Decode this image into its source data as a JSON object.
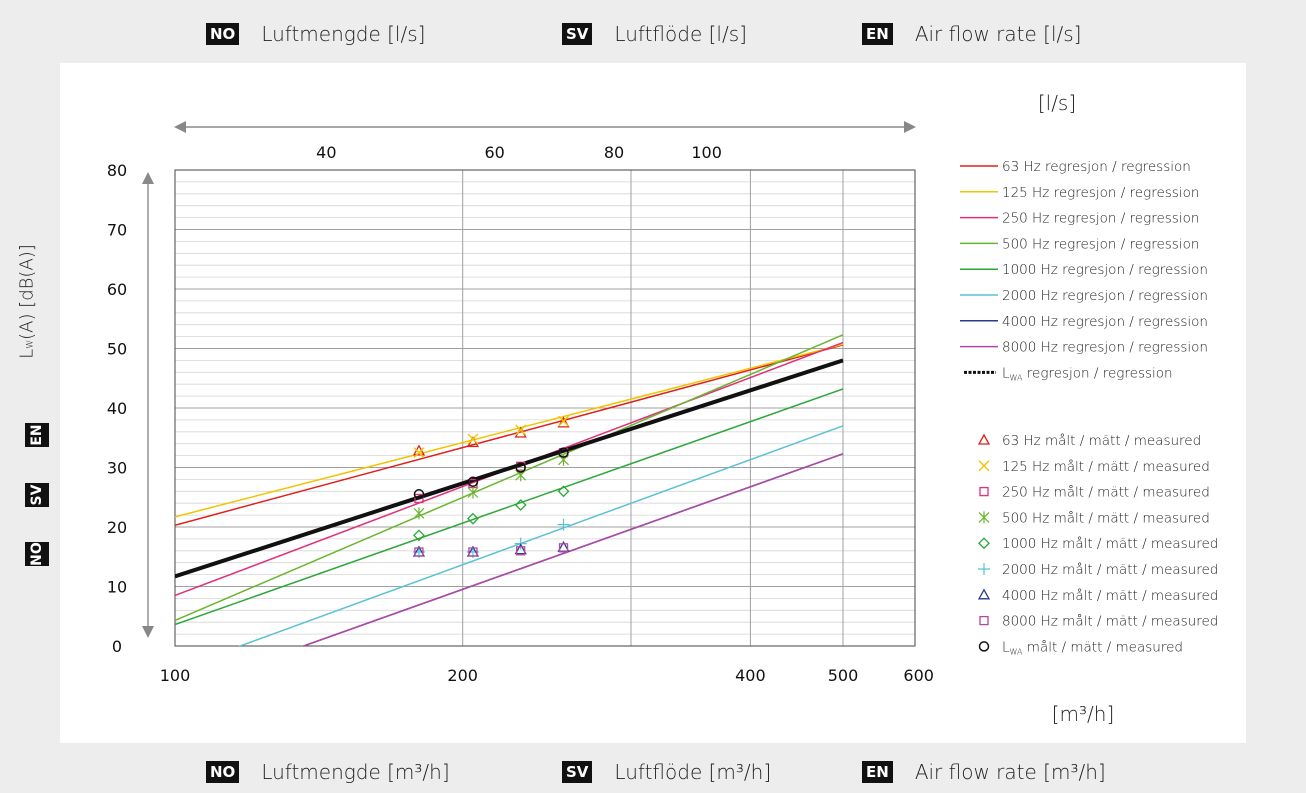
{
  "header": [
    {
      "code": "NO",
      "text": "Luftmengde [l/s]"
    },
    {
      "code": "SV",
      "text": "Luftflöde [l/s]"
    },
    {
      "code": "EN",
      "text": "Air flow rate [l/s]"
    }
  ],
  "footer": [
    {
      "code": "NO",
      "text": "Luftmengde [m³/h]"
    },
    {
      "code": "SV",
      "text": "Luftflöde [m³/h]"
    },
    {
      "code": "EN",
      "text": "Air flow rate [m³/h]"
    }
  ],
  "side_badges": [
    "EN",
    "SV",
    "NO"
  ],
  "chart_data": {
    "type": "scatter",
    "xscale": "log",
    "xlim": [
      100,
      500
    ],
    "ylim": [
      0,
      80
    ],
    "xticks": [
      100,
      200,
      400,
      500,
      600
    ],
    "yticks": [
      0,
      10,
      20,
      30,
      40,
      50,
      60,
      70,
      80
    ],
    "top_axis_ticks": [
      40,
      60,
      80,
      100
    ],
    "top_axis_unit": "[l/s]",
    "bottom_axis_unit": "[m³/h]",
    "ylabel_main": "L",
    "ylabel_sub": "W",
    "ylabel_rest": "(A) [dB(A)]",
    "regressions": [
      {
        "label": "63 Hz regresjon / regression",
        "color": "#e0201b",
        "y_at_100": 20.3,
        "y_at_500": 50.6
      },
      {
        "label": "125 Hz regresjon / regression",
        "color": "#f2c400",
        "y_at_100": 21.7,
        "y_at_500": 50.7
      },
      {
        "label": "250 Hz regresjon / regression",
        "color": "#e0307a",
        "y_at_100": 8.5,
        "y_at_500": 51.0
      },
      {
        "label": "500 Hz regresjon / regression",
        "color": "#6ab52f",
        "y_at_100": 4.3,
        "y_at_500": 52.3
      },
      {
        "label": "1000 Hz regresjon / regression",
        "color": "#2aa836",
        "y_at_100": 3.6,
        "y_at_500": 43.2
      },
      {
        "label": "2000 Hz regresjon / regression",
        "color": "#5bc2d6",
        "y_at_100": -4.0,
        "y_at_500": 37.0
      },
      {
        "label": "4000 Hz regresjon / regression",
        "color": "#2a3a8f",
        "y_at_100": -7.7,
        "y_at_500": 32.3
      },
      {
        "label": "8000 Hz regresjon / regression",
        "color": "#b04aa6",
        "y_at_100": -7.7,
        "y_at_500": 32.3
      }
    ],
    "lwa_regression": {
      "label_main": "L",
      "label_sub": "WA",
      "label_rest": " regresjon / regression",
      "color": "#111111",
      "y_at_100": 11.7,
      "y_at_500": 48.0
    },
    "measured": [
      {
        "label": "63 Hz målt / mätt / measured",
        "color": "#e0201b",
        "marker": "triangle",
        "x": [
          180,
          205,
          230,
          255
        ],
        "y": [
          32.8,
          34.2,
          35.8,
          37.5
        ]
      },
      {
        "label": "125 Hz målt / mätt / measured",
        "color": "#f2c400",
        "marker": "x",
        "x": [
          180,
          205,
          230,
          255
        ],
        "y": [
          32.5,
          34.8,
          36.3,
          37.8
        ]
      },
      {
        "label": "250 Hz målt / mätt / measured",
        "color": "#e0307a",
        "marker": "square",
        "x": [
          180,
          205,
          230,
          255
        ],
        "y": [
          24.8,
          27.3,
          30.2,
          32.5
        ]
      },
      {
        "label": "500 Hz målt / mätt / measured",
        "color": "#6ab52f",
        "marker": "asterisk",
        "x": [
          180,
          205,
          230,
          255
        ],
        "y": [
          22.3,
          25.8,
          28.7,
          31.3
        ]
      },
      {
        "label": "1000 Hz målt / mätt / measured",
        "color": "#2aa836",
        "marker": "diamond",
        "x": [
          180,
          205,
          230,
          255
        ],
        "y": [
          18.6,
          21.4,
          23.7,
          26.0
        ]
      },
      {
        "label": "2000 Hz målt / mätt / measured",
        "color": "#5bc2d6",
        "marker": "plus",
        "x": [
          180,
          205,
          230,
          255
        ],
        "y": [
          15.8,
          15.8,
          17.2,
          20.4
        ]
      },
      {
        "label": "4000 Hz målt / mätt / measured",
        "color": "#2a3a8f",
        "marker": "triangle",
        "x": [
          180,
          205,
          230,
          255
        ],
        "y": [
          15.8,
          15.8,
          16.2,
          16.6
        ]
      },
      {
        "label": "8000 Hz målt / mätt / measured",
        "color": "#b04aa6",
        "marker": "square",
        "x": [
          180,
          205,
          230,
          255
        ],
        "y": [
          15.8,
          15.8,
          16.0,
          16.5
        ]
      },
      {
        "label_main": "L",
        "label_sub": "WA",
        "label_rest": " målt / mätt / measured",
        "color": "#111111",
        "marker": "circle",
        "x": [
          180,
          205,
          230,
          255
        ],
        "y": [
          25.5,
          27.6,
          30.0,
          32.5
        ]
      }
    ]
  }
}
